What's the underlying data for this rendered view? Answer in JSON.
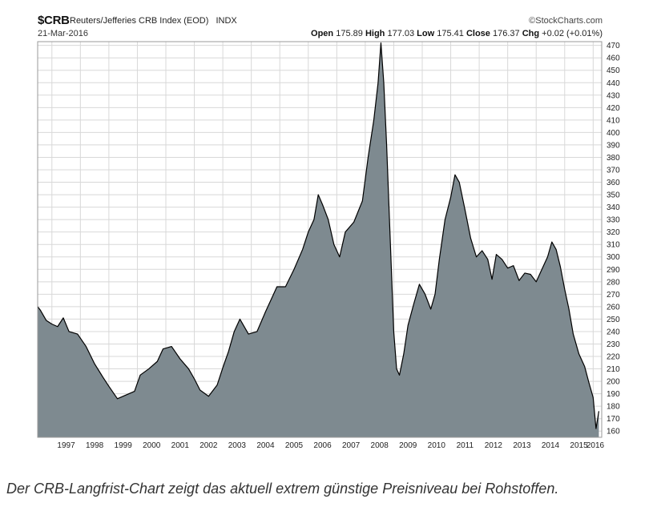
{
  "header": {
    "symbol": "$CRB",
    "index_name": "Reuters/Jefferies CRB Index (EOD)",
    "exchange": "INDX",
    "date": "21-Mar-2016",
    "brand": "©StockCharts.com",
    "open_label": "Open",
    "open_value": "175.89",
    "high_label": "High",
    "high_value": "177.03",
    "low_label": "Low",
    "low_value": "175.41",
    "close_label": "Close",
    "close_value": "176.37",
    "chg_label": "Chg",
    "chg_value": "+0.02 (+0.01%)"
  },
  "caption": "Der CRB-Langfrist-Chart zeigt das aktuell extrem günstige Preisniveau bei Rohstoffen.",
  "colors": {
    "area_fill": "#7e8a90",
    "line": "#000000",
    "grid": "#d8d8d8",
    "border": "#999999"
  },
  "chart_data": {
    "type": "area",
    "title": "",
    "xlabel": "",
    "ylabel": "",
    "ylim": [
      155,
      473
    ],
    "xlim": [
      1996.5,
      2016.3
    ],
    "y_axis_side": "right",
    "grid": true,
    "y_ticks": [
      470,
      460,
      450,
      440,
      430,
      420,
      410,
      400,
      390,
      380,
      370,
      360,
      350,
      340,
      330,
      320,
      310,
      300,
      290,
      280,
      270,
      260,
      250,
      240,
      230,
      220,
      210,
      200,
      190,
      180,
      170,
      160
    ],
    "x_ticks": [
      "1997",
      "1998",
      "1999",
      "2000",
      "2001",
      "2002",
      "2003",
      "2004",
      "2005",
      "2006",
      "2007",
      "2008",
      "2009",
      "2010",
      "2011",
      "2012",
      "2013",
      "2014",
      "2015",
      "2016"
    ],
    "series": [
      {
        "x": [
          1996.5,
          1996.6,
          1996.8,
          1997.0,
          1997.2,
          1997.4,
          1997.6,
          1997.9,
          1998.2,
          1998.5,
          1998.8,
          1999.0,
          1999.3,
          1999.6,
          1999.9,
          2000.1,
          2000.4,
          2000.7,
          2000.9,
          2001.2,
          2001.5,
          2001.8,
          2002.0,
          2002.2,
          2002.5,
          2002.8,
          2003.0,
          2003.2,
          2003.4,
          2003.6,
          2003.9,
          2004.2,
          2004.5,
          2004.7,
          2004.9,
          2005.2,
          2005.5,
          2005.8,
          2006.0,
          2006.2,
          2006.35,
          2006.5,
          2006.7,
          2006.9,
          2007.1,
          2007.3,
          2007.6,
          2007.9,
          2008.1,
          2008.3,
          2008.45,
          2008.55,
          2008.65,
          2008.75,
          2008.85,
          2009.0,
          2009.1,
          2009.2,
          2009.35,
          2009.5,
          2009.7,
          2009.9,
          2010.1,
          2010.3,
          2010.45,
          2010.6,
          2010.8,
          2011.0,
          2011.15,
          2011.3,
          2011.5,
          2011.7,
          2011.9,
          2012.1,
          2012.3,
          2012.45,
          2012.6,
          2012.8,
          2013.0,
          2013.2,
          2013.4,
          2013.6,
          2013.8,
          2014.0,
          2014.2,
          2014.4,
          2014.55,
          2014.7,
          2014.85,
          2015.0,
          2015.15,
          2015.3,
          2015.5,
          2015.7,
          2015.85,
          2016.0,
          2016.1,
          2016.2
        ],
        "y": [
          260,
          257,
          249,
          246,
          244,
          251,
          240,
          238,
          228,
          214,
          203,
          196,
          186,
          189,
          192,
          205,
          210,
          216,
          226,
          228,
          218,
          210,
          202,
          193,
          188,
          197,
          211,
          224,
          240,
          250,
          238,
          240,
          256,
          266,
          276,
          276,
          290,
          306,
          320,
          330,
          350,
          342,
          330,
          310,
          300,
          320,
          328,
          345,
          380,
          410,
          440,
          472,
          440,
          390,
          330,
          240,
          210,
          205,
          222,
          245,
          262,
          278,
          270,
          258,
          270,
          298,
          330,
          348,
          366,
          360,
          338,
          315,
          300,
          305,
          298,
          282,
          302,
          298,
          291,
          293,
          281,
          287,
          286,
          280,
          290,
          300,
          312,
          306,
          292,
          274,
          258,
          238,
          222,
          212,
          199,
          187,
          162,
          176
        ]
      }
    ]
  }
}
